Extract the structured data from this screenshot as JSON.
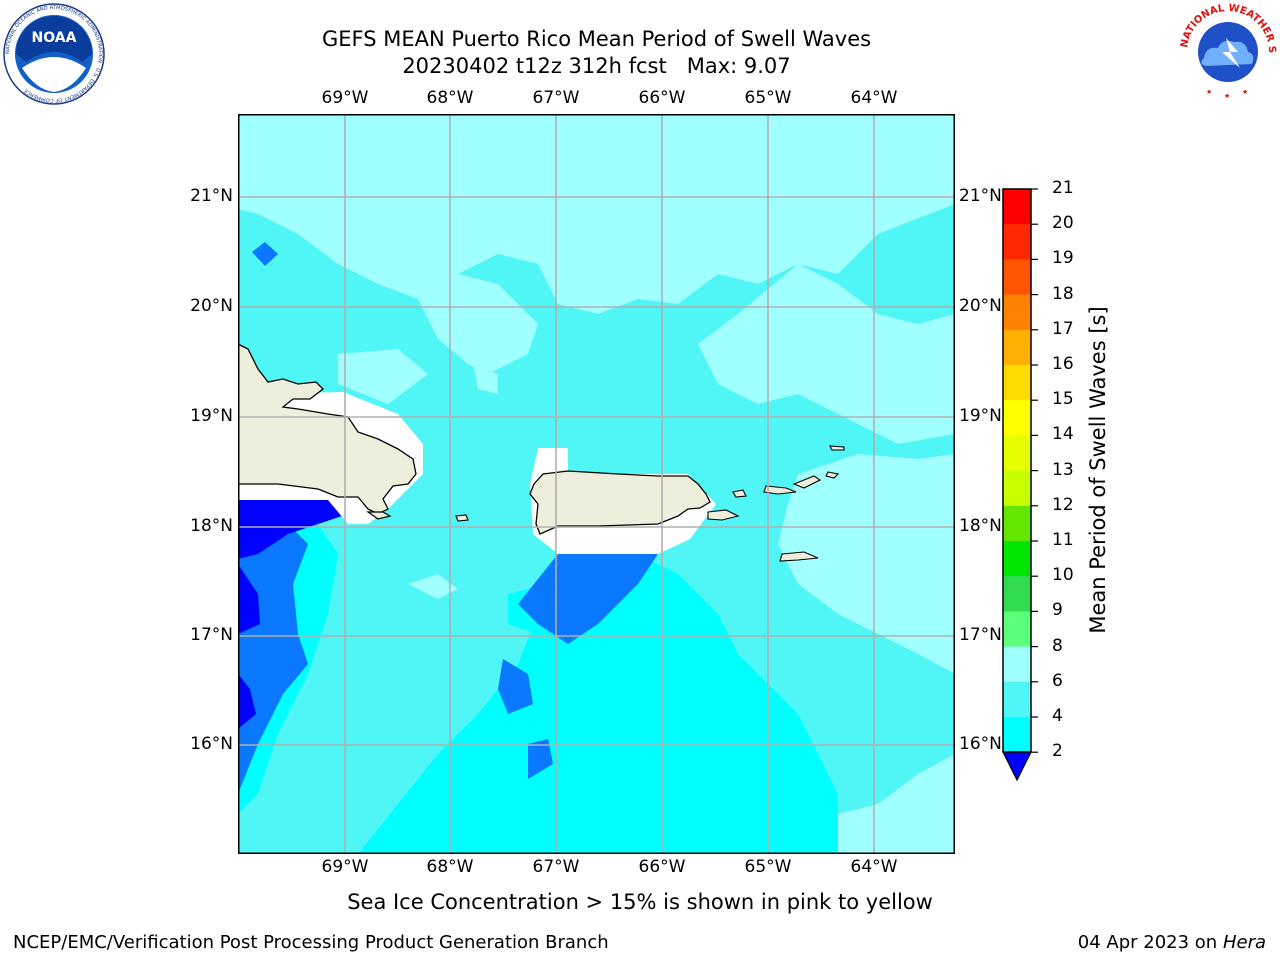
{
  "title": {
    "line1": "GEFS MEAN Puerto Rico Mean Period of Swell Waves",
    "line2": "20230402 t12z 312h fcst   Max: 9.07"
  },
  "logos": {
    "noaa_text": "NOAA",
    "noaa_ring_text": "NATIONAL OCEANIC AND ATMOSPHERIC ADMINISTRATION · U.S. DEPARTMENT OF COMMERCE",
    "nws_ring_text": "NATIONAL WEATHER SERVICE"
  },
  "map": {
    "lon_labels": [
      "69°W",
      "68°W",
      "67°W",
      "66°W",
      "65°W",
      "64°W"
    ],
    "lat_labels": [
      "21°N",
      "20°N",
      "19°N",
      "18°N",
      "17°N",
      "16°N"
    ],
    "lon_range": [
      -70.0,
      -63.25
    ],
    "lat_range": [
      15.0,
      21.75
    ],
    "land_color": "#eeeedd",
    "mask_color": "#ffffff",
    "grid_color": "#b0b0b0"
  },
  "colorbar": {
    "label": "Mean Period of Swell Waves [s]",
    "ticks": [
      "21",
      "20",
      "19",
      "18",
      "17",
      "16",
      "15",
      "14",
      "13",
      "12",
      "11",
      "10",
      "9",
      "8",
      "6",
      "4",
      "2"
    ],
    "bands": [
      {
        "from": 20,
        "to": 21,
        "color": "#ff0000"
      },
      {
        "from": 19,
        "to": 20,
        "color": "#ff2800"
      },
      {
        "from": 18,
        "to": 19,
        "color": "#ff5500"
      },
      {
        "from": 17,
        "to": 18,
        "color": "#ff8200"
      },
      {
        "from": 16,
        "to": 17,
        "color": "#ffb000"
      },
      {
        "from": 15,
        "to": 16,
        "color": "#ffdc00"
      },
      {
        "from": 14,
        "to": 15,
        "color": "#ffff00"
      },
      {
        "from": 13,
        "to": 14,
        "color": "#e6ff00"
      },
      {
        "from": 12,
        "to": 13,
        "color": "#c8ff00"
      },
      {
        "from": 11,
        "to": 12,
        "color": "#64e600"
      },
      {
        "from": 10,
        "to": 11,
        "color": "#00e600"
      },
      {
        "from": 9,
        "to": 10,
        "color": "#32dc50"
      },
      {
        "from": 8,
        "to": 9,
        "color": "#5aff7a"
      },
      {
        "from": 6,
        "to": 8,
        "color": "#a0ffff"
      },
      {
        "from": 4,
        "to": 6,
        "color": "#50f5f5"
      },
      {
        "from": 2,
        "to": 4,
        "color": "#00ffff"
      },
      {
        "from": 0,
        "to": 2,
        "color": "#0a78ff"
      }
    ],
    "under_color": "#0000ff"
  },
  "note": "Sea Ice Concentration > 15% is shown in pink to yellow",
  "footer": {
    "left": "NCEP/EMC/Verification Post Processing Product Generation Branch",
    "right_date": "04 Apr 2023 on ",
    "right_host": "Hera"
  }
}
